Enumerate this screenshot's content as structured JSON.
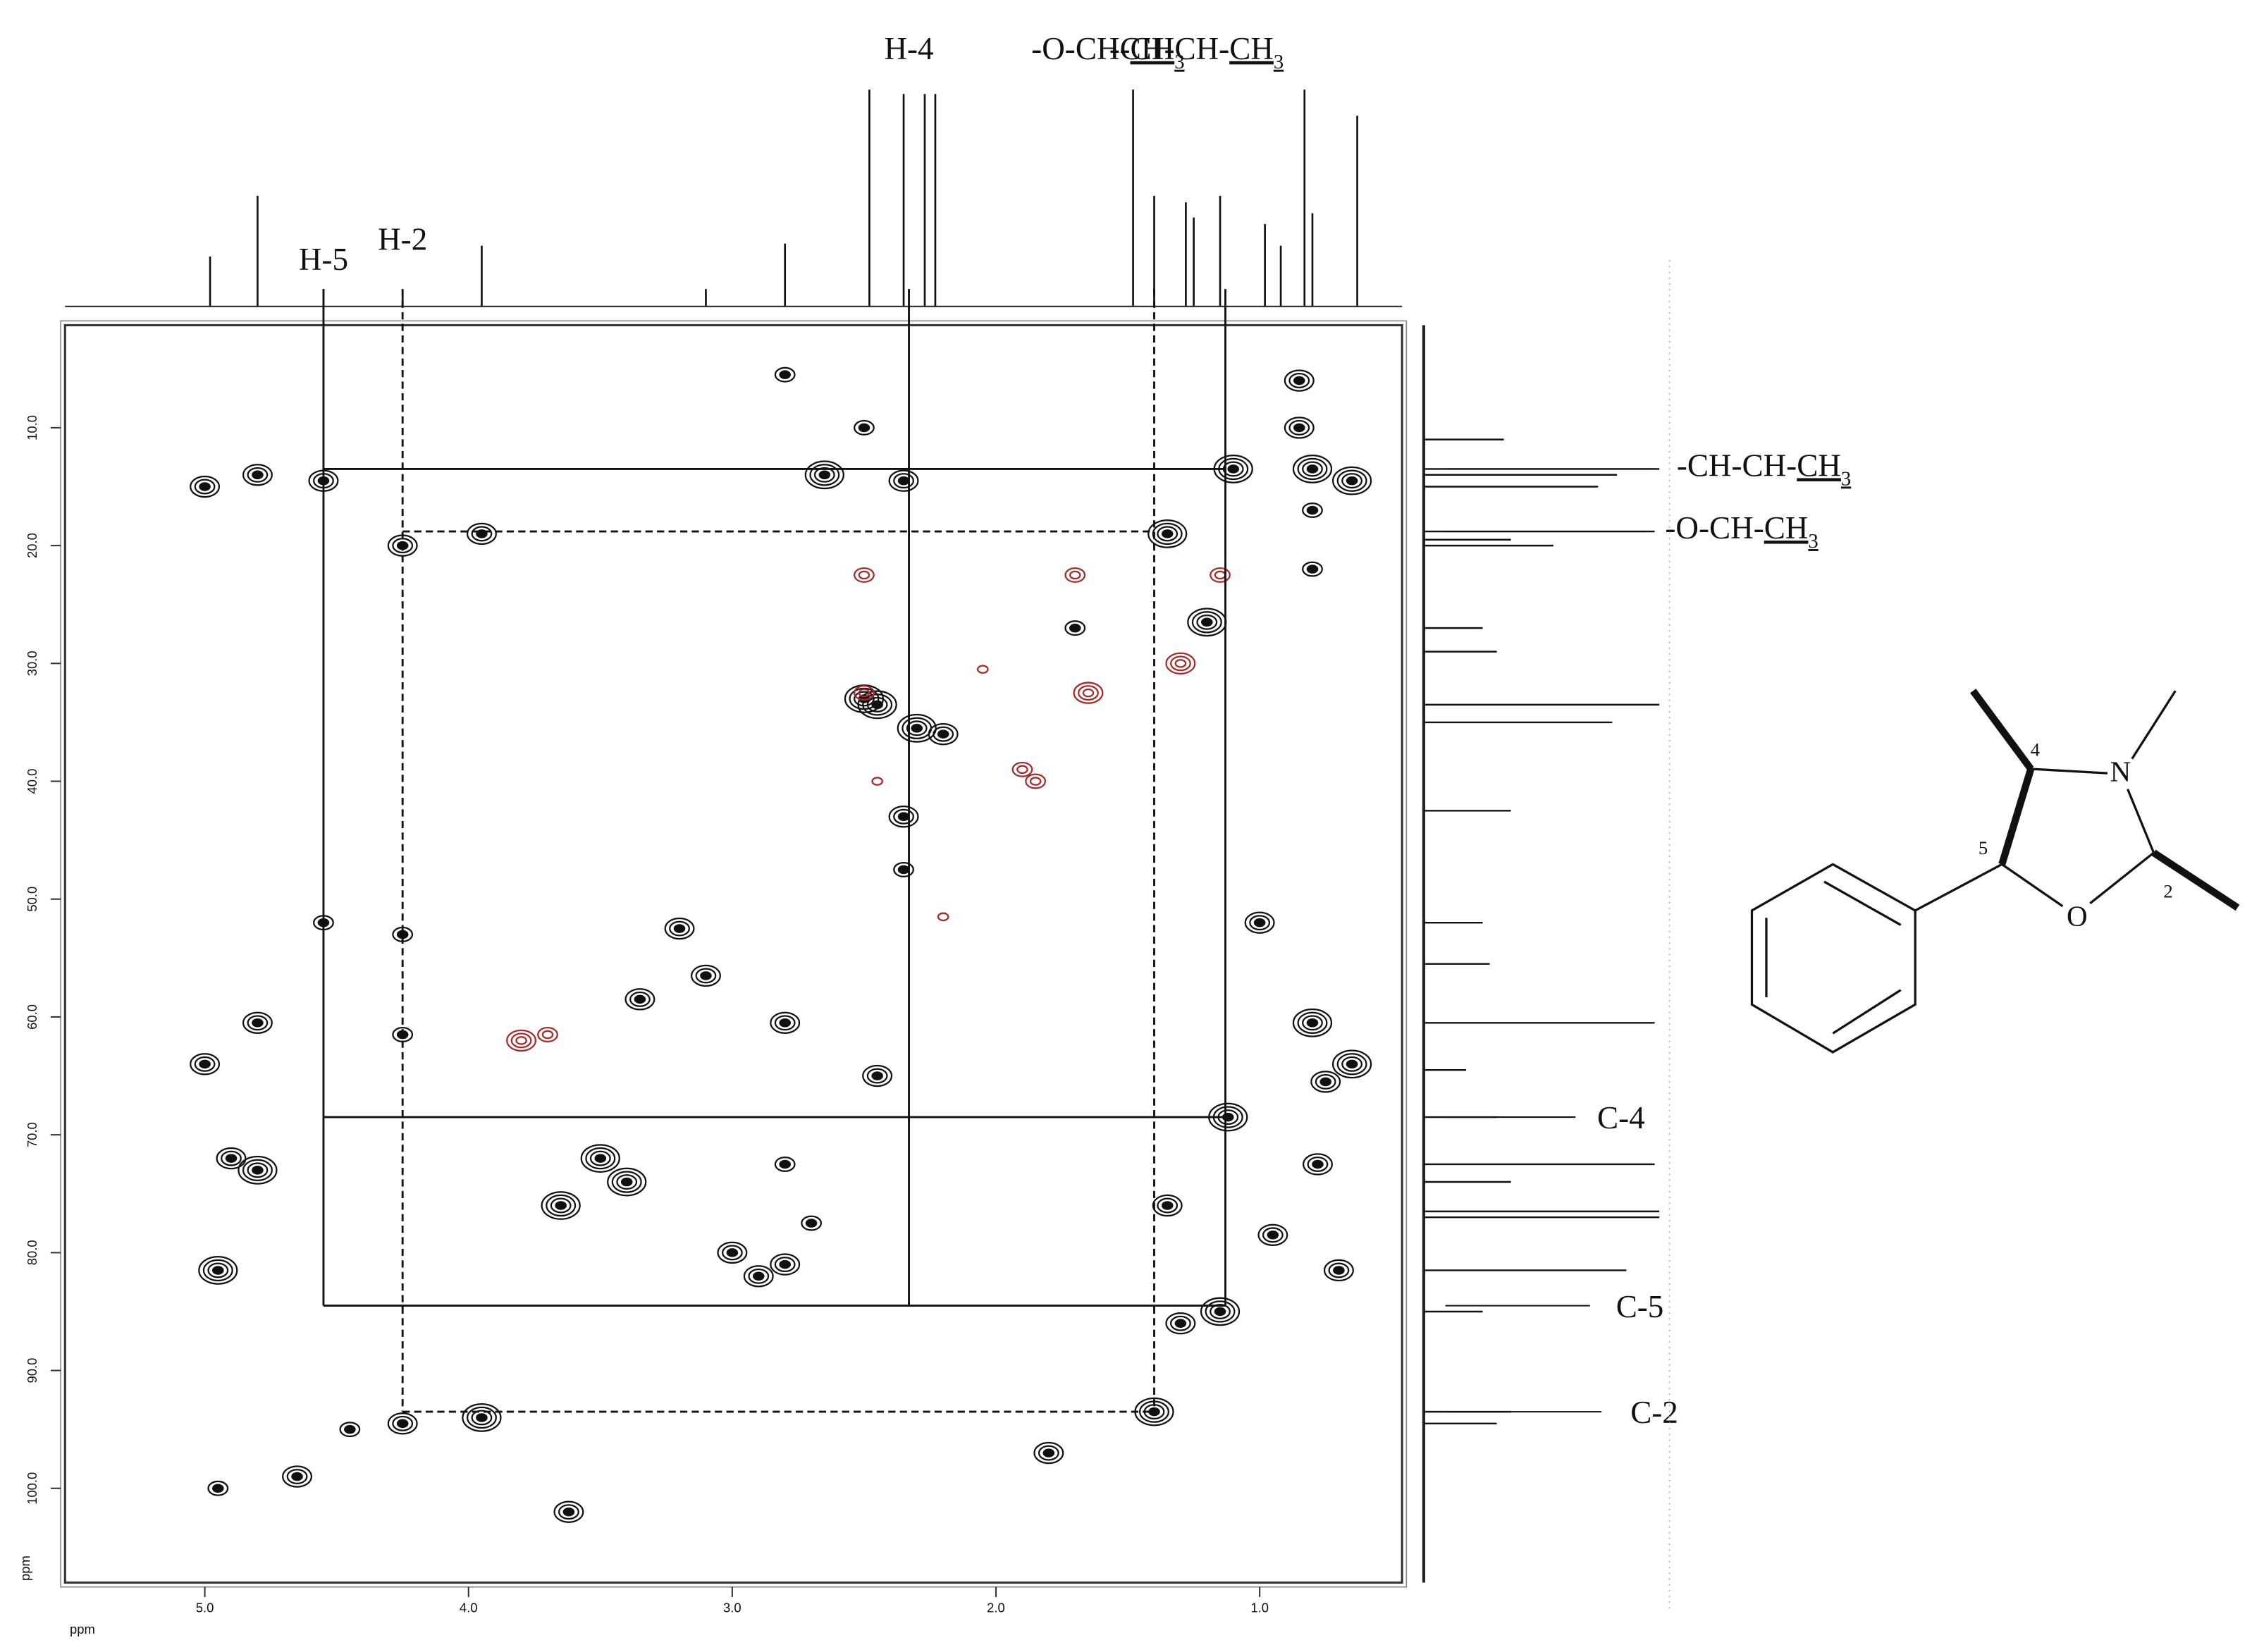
{
  "chart_data": {
    "type": "scatter",
    "x_label": "ppm",
    "y_label": "ppm",
    "xlim": [
      5.53,
      0.46
    ],
    "ylim": [
      1.3,
      108.0
    ],
    "xticks": [
      {
        "value": 5,
        "label": "5.0"
      },
      {
        "value": 4,
        "label": "4.0"
      },
      {
        "value": 3,
        "label": "3.0"
      },
      {
        "value": 2,
        "label": "2.0"
      },
      {
        "value": 1,
        "label": "1.0"
      }
    ],
    "yticks": [
      {
        "value": 10,
        "label": "10.0"
      },
      {
        "value": 20,
        "label": "20.0"
      },
      {
        "value": 30,
        "label": "30.0"
      },
      {
        "value": 40,
        "label": "40.0"
      },
      {
        "value": 50,
        "label": "50.0"
      },
      {
        "value": 60,
        "label": "60.0"
      },
      {
        "value": 70,
        "label": "70.0"
      },
      {
        "value": 80,
        "label": "80.0"
      },
      {
        "value": 90,
        "label": "90.0"
      },
      {
        "value": 100,
        "label": "100.0"
      }
    ],
    "series": [
      {
        "color": "#111111",
        "x": [
          4.55,
          4.8,
          5.0,
          4.8,
          4.55,
          4.25,
          4.25,
          4.25,
          3.95,
          3.95,
          4.25,
          4.45,
          4.8,
          4.9,
          4.95,
          5.0,
          4.65,
          4.95,
          3.62,
          3.5,
          3.65,
          3.4,
          3.2,
          3.35,
          3.1,
          3.0,
          2.9,
          2.8,
          2.8,
          2.8,
          2.7,
          2.5,
          2.45,
          2.35,
          2.3,
          2.2,
          2.45,
          2.35,
          2.5,
          2.65,
          2.35,
          2.8,
          1.4,
          1.15,
          1.12,
          1.35,
          1.3,
          1.1,
          0.8,
          0.65,
          0.85,
          0.85,
          0.8,
          0.8,
          1.2,
          1.35,
          1.7,
          1.0,
          0.8,
          0.65,
          0.78,
          0.75,
          0.7,
          0.95,
          1.8
        ],
        "values": [
          14.5,
          14,
          15,
          60.5,
          52,
          53,
          61.5,
          20,
          19,
          94,
          94.5,
          95,
          73,
          72,
          81.5,
          64,
          99,
          100,
          102,
          72,
          76,
          74,
          52.5,
          58.5,
          56.5,
          80,
          82,
          81,
          60.5,
          72.5,
          77.5,
          33,
          33.5,
          43,
          35.5,
          36,
          65,
          47.5,
          10,
          14,
          14.5,
          5.5,
          93.5,
          85,
          68.5,
          76,
          86,
          13.5,
          13.5,
          14.5,
          10,
          6,
          17,
          22,
          26.5,
          19,
          27,
          52,
          60.5,
          64,
          72.5,
          65.5,
          81.5,
          78.5,
          97
        ],
        "levels": [
          3,
          3,
          3,
          3,
          2,
          2,
          2,
          3,
          3,
          4,
          3,
          2,
          4,
          3,
          4,
          3,
          3,
          2,
          3,
          4,
          4,
          4,
          3,
          3,
          3,
          3,
          3,
          3,
          3,
          2,
          2,
          4,
          4,
          3,
          4,
          3,
          3,
          2,
          2,
          4,
          3,
          2,
          4,
          4,
          4,
          3,
          3,
          4,
          4,
          4,
          3,
          3,
          2,
          2,
          4,
          4,
          2,
          3,
          4,
          4,
          3,
          3,
          3,
          3,
          3
        ]
      },
      {
        "color": "#a52a2a",
        "x": [
          2.5,
          2.5,
          2.45,
          1.7,
          1.65,
          1.3,
          1.85,
          1.9,
          3.8,
          3.7,
          2.2,
          2.05,
          1.15
        ],
        "values": [
          22.5,
          32.5,
          40,
          22.5,
          32.5,
          30,
          40,
          39,
          62,
          61.5,
          51.5,
          30.5,
          22.5
        ],
        "levels": [
          2,
          2,
          1,
          2,
          3,
          3,
          2,
          2,
          3,
          2,
          1,
          1,
          2
        ]
      }
    ],
    "top_spectrum": {
      "x": [
        4.98,
        4.8,
        4.55,
        4.25,
        3.95,
        3.1,
        2.8,
        2.48,
        2.35,
        2.27,
        2.23,
        1.48,
        1.4,
        1.28,
        1.25,
        1.15,
        0.98,
        0.92,
        0.83,
        0.8,
        0.63
      ],
      "values": [
        23,
        51,
        8,
        6,
        28,
        8,
        29,
        100,
        98,
        98,
        98,
        100,
        51,
        48,
        41,
        51,
        38,
        28,
        100,
        43,
        88
      ]
    },
    "side_spectrum": {
      "y": [
        11,
        13.5,
        14,
        15,
        18.8,
        19.5,
        20,
        27,
        29,
        33.5,
        35,
        42.5,
        52,
        55.5,
        60.5,
        64.5,
        68.5,
        72.5,
        74,
        76.5,
        77,
        81.5,
        85,
        93.5,
        94.5
      ],
      "values": [
        34,
        100,
        82,
        74,
        98,
        37,
        55,
        25,
        31,
        100,
        80,
        37,
        25,
        28,
        98,
        18,
        31,
        98,
        37,
        100,
        100,
        86,
        25,
        37,
        31
      ]
    },
    "h_annotations": [
      {
        "parts": [
          "H-5"
        ],
        "x": 4.55,
        "style": "solid"
      },
      {
        "parts": [
          "H-2"
        ],
        "x": 4.25,
        "style": "dashed"
      },
      {
        "parts": [
          "H-4"
        ],
        "x": 2.33,
        "style": "solid"
      },
      {
        "parts": [
          "-O-CH-",
          "CH",
          "3"
        ],
        "x": 1.4,
        "style": "dashed"
      },
      {
        "parts": [
          "-CH-CH-",
          "CH",
          "3"
        ],
        "x": 1.13,
        "style": "solid"
      }
    ],
    "c_annotations": [
      {
        "parts": [
          "-CH-CH-",
          "CH",
          "3"
        ],
        "y": 13.5,
        "style": "solid"
      },
      {
        "parts": [
          "-O-CH-",
          "CH",
          "3"
        ],
        "y": 18.8,
        "style": "dashed"
      },
      {
        "parts": [
          "C-4"
        ],
        "y": 68.5,
        "style": "solid"
      },
      {
        "parts": [
          "C-5"
        ],
        "y": 84.5,
        "style": "solid"
      },
      {
        "parts": [
          "C-2"
        ],
        "y": 93.5,
        "style": "dashed"
      }
    ]
  },
  "structure": {
    "labels": [
      "N",
      "O",
      "4",
      "5",
      "2"
    ]
  }
}
